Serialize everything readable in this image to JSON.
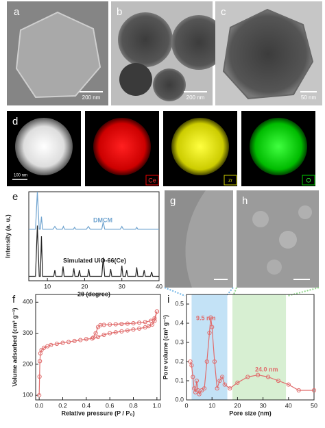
{
  "panels": [
    {
      "label": "a",
      "scale_bar": "200 nm"
    },
    {
      "label": "b",
      "scale_bar": "200 nm"
    },
    {
      "label": "c",
      "scale_bar": "50 nm"
    },
    {
      "label": "d",
      "scale_bar": "100 nm",
      "elements": [
        "Ce",
        "Zr",
        "O"
      ]
    },
    {
      "label": "e"
    },
    {
      "label": "g"
    },
    {
      "label": "h"
    },
    {
      "label": "f"
    },
    {
      "label": "i"
    }
  ],
  "chart_data": [
    {
      "type": "line",
      "x_label": "2θ (degree)",
      "y_label": "Intensity (a. u.)",
      "xlim": [
        5,
        40
      ],
      "ylim": [
        0,
        100
      ],
      "xticks": [
        10,
        20,
        30,
        40
      ],
      "series": [
        {
          "name": "DMCM",
          "color": "#6fa3cf",
          "x": [
            5,
            6.8,
            7.3,
            7.8,
            8.1,
            8.4,
            8.7,
            11.5,
            12,
            12.5,
            14,
            14.3,
            14.6,
            17,
            17.3,
            17.6,
            20.5,
            21,
            21.5,
            24.6,
            25,
            25.4,
            29.6,
            30,
            30.4,
            33.7,
            34,
            34.3,
            40
          ],
          "values": [
            58,
            58,
            100,
            58,
            58,
            72,
            58,
            58,
            61,
            58,
            58,
            61,
            58,
            58,
            60,
            58,
            58,
            61,
            58,
            58,
            66,
            58,
            58,
            61,
            58,
            58,
            60,
            58,
            58
          ]
        },
        {
          "name": "Simulated UiO-66(Ce)",
          "color": "#222222",
          "x": [
            5,
            6.8,
            7.3,
            7.8,
            8.1,
            8.4,
            8.7,
            11.7,
            12,
            12.3,
            13.9,
            14.2,
            14.5,
            16.8,
            17.1,
            17.4,
            18.3,
            18.6,
            18.9,
            20.8,
            21.1,
            21.4,
            24.6,
            25,
            25.4,
            26.7,
            27,
            27.3,
            29.7,
            30,
            30.3,
            31,
            31.3,
            31.6,
            33.7,
            34,
            34.3,
            35.7,
            36,
            36.3,
            37.7,
            38,
            38.3,
            40
          ],
          "values": [
            5,
            5,
            62,
            5,
            5,
            50,
            5,
            5,
            12,
            5,
            5,
            16,
            5,
            5,
            14,
            5,
            5,
            12,
            5,
            5,
            13,
            5,
            5,
            26,
            5,
            5,
            13,
            5,
            5,
            17,
            5,
            5,
            12,
            5,
            5,
            15,
            5,
            5,
            12,
            5,
            5,
            10,
            5,
            5
          ]
        }
      ]
    },
    {
      "type": "line",
      "markers": true,
      "x_label": "Relative pressure (P / P₀)",
      "y_label": "Volume adsorbed (cm³ g⁻¹)",
      "xlim": [
        -0.03,
        1.03
      ],
      "ylim": [
        85,
        425
      ],
      "xticks": [
        {
          "value": 0,
          "label": "0.0"
        },
        0.2,
        0.4,
        0.6,
        0.8,
        {
          "value": 1,
          "label": "1.0"
        }
      ],
      "yticks": [
        100,
        200,
        300,
        400
      ],
      "series": [
        {
          "color": "#e06b6b",
          "x": [
            0.0,
            0.003,
            0.006,
            0.01,
            0.02,
            0.04,
            0.07,
            0.1,
            0.15,
            0.2,
            0.25,
            0.3,
            0.35,
            0.4,
            0.45,
            0.5,
            0.55,
            0.6,
            0.65,
            0.7,
            0.75,
            0.8,
            0.85,
            0.9,
            0.93,
            0.96,
            0.98,
            1.0
          ],
          "values": [
            100,
            160,
            210,
            235,
            246,
            253,
            258,
            262,
            266,
            269,
            272,
            275,
            278,
            281,
            283,
            288,
            295,
            300,
            303,
            306,
            309,
            312,
            315,
            319,
            323,
            328,
            340,
            370
          ]
        },
        {
          "color": "#e06b6b",
          "x": [
            1.0,
            0.98,
            0.95,
            0.9,
            0.85,
            0.8,
            0.75,
            0.7,
            0.65,
            0.6,
            0.55,
            0.52,
            0.5,
            0.48,
            0.46
          ],
          "values": [
            370,
            348,
            340,
            336,
            334,
            332,
            331,
            330,
            329,
            328,
            327,
            326,
            320,
            300,
            286
          ]
        }
      ]
    },
    {
      "type": "line",
      "markers": true,
      "x_label": "Pore size (nm)",
      "y_label": "Pore volume (cm³ g⁻¹)",
      "xlim": [
        0,
        50
      ],
      "ylim": [
        0,
        0.55
      ],
      "xticks": [
        0,
        10,
        20,
        30,
        40,
        50
      ],
      "yticks": [
        {
          "value": 0,
          "label": "0.0"
        },
        0.1,
        0.2,
        0.3,
        0.4,
        0.5
      ],
      "annotations": [
        "9.5 nm",
        "24.0 nm"
      ],
      "bands": [
        {
          "x": [
            2,
            16
          ],
          "color": "#c3e2f6"
        },
        {
          "x": [
            18,
            39
          ],
          "color": "#d7efd2"
        }
      ],
      "series": [
        {
          "color": "#e06b6b",
          "x": [
            1.5,
            2,
            2.5,
            3,
            3.5,
            4,
            4.5,
            5,
            6,
            7,
            8,
            9,
            9.5,
            10,
            11,
            12,
            13,
            14,
            15,
            17,
            20,
            24,
            28,
            32,
            36,
            40,
            44,
            50
          ],
          "values": [
            0.2,
            0.18,
            0.12,
            0.06,
            0.04,
            0.1,
            0.05,
            0.03,
            0.05,
            0.06,
            0.2,
            0.35,
            0.43,
            0.38,
            0.2,
            0.06,
            0.1,
            0.12,
            0.08,
            0.06,
            0.09,
            0.12,
            0.13,
            0.12,
            0.1,
            0.08,
            0.05,
            0.05
          ]
        }
      ]
    }
  ]
}
